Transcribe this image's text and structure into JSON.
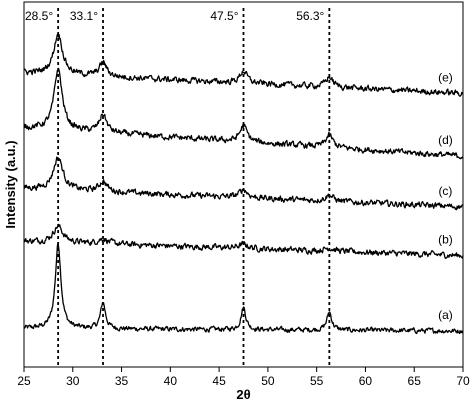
{
  "chart_data": {
    "type": "line",
    "title": "",
    "xlabel": "2θ",
    "ylabel": "Intensity (a.u.)",
    "xlim": [
      25,
      70
    ],
    "x_ticks": [
      "25",
      "30",
      "35",
      "40",
      "45",
      "50",
      "55",
      "60",
      "65",
      "70"
    ],
    "y_ticks_shown": false,
    "grid": false,
    "legend": "none",
    "line_color": "#000000",
    "reference_lines": [
      {
        "x": 28.5,
        "label": "28.5°"
      },
      {
        "x": 33.1,
        "label": "33.1°"
      },
      {
        "x": 47.5,
        "label": "47.5°"
      },
      {
        "x": 56.3,
        "label": "56.3°"
      }
    ],
    "series": [
      {
        "label": "(a)",
        "baseline": 0.55,
        "slope": -0.06,
        "noise": 0.1,
        "peaks": [
          {
            "x": 28.5,
            "height": 2.1,
            "width": 0.35
          },
          {
            "x": 33.1,
            "height": 0.65,
            "width": 0.3
          },
          {
            "x": 47.5,
            "height": 0.55,
            "width": 0.3
          },
          {
            "x": 56.3,
            "height": 0.45,
            "width": 0.3
          }
        ]
      },
      {
        "label": "(b)",
        "baseline": 2.7,
        "slope": -0.35,
        "noise": 0.12,
        "peaks": [
          {
            "x": 28.5,
            "height": 0.4,
            "width": 0.6
          },
          {
            "x": 33.1,
            "height": 0.12,
            "width": 0.6
          },
          {
            "x": 47.5,
            "height": 0.1,
            "width": 0.6
          },
          {
            "x": 56.3,
            "height": 0.08,
            "width": 0.6
          }
        ]
      },
      {
        "label": "(c)",
        "baseline": 4.0,
        "slope": -0.45,
        "noise": 0.12,
        "peaks": [
          {
            "x": 28.5,
            "height": 0.8,
            "width": 0.6
          },
          {
            "x": 33.1,
            "height": 0.25,
            "width": 0.5
          },
          {
            "x": 47.5,
            "height": 0.2,
            "width": 0.5
          },
          {
            "x": 56.3,
            "height": 0.15,
            "width": 0.5
          }
        ]
      },
      {
        "label": "(d)",
        "baseline": 5.5,
        "slope": -0.7,
        "noise": 0.12,
        "peaks": [
          {
            "x": 28.5,
            "height": 1.5,
            "width": 0.5
          },
          {
            "x": 33.1,
            "height": 0.45,
            "width": 0.45
          },
          {
            "x": 47.5,
            "height": 0.4,
            "width": 0.45
          },
          {
            "x": 56.3,
            "height": 0.3,
            "width": 0.45
          }
        ]
      },
      {
        "label": "(e)",
        "baseline": 6.85,
        "slope": -0.5,
        "noise": 0.12,
        "peaks": [
          {
            "x": 28.5,
            "height": 1.0,
            "width": 0.55
          },
          {
            "x": 33.1,
            "height": 0.35,
            "width": 0.45
          },
          {
            "x": 47.5,
            "height": 0.3,
            "width": 0.45
          },
          {
            "x": 56.3,
            "height": 0.25,
            "width": 0.45
          }
        ]
      }
    ]
  }
}
